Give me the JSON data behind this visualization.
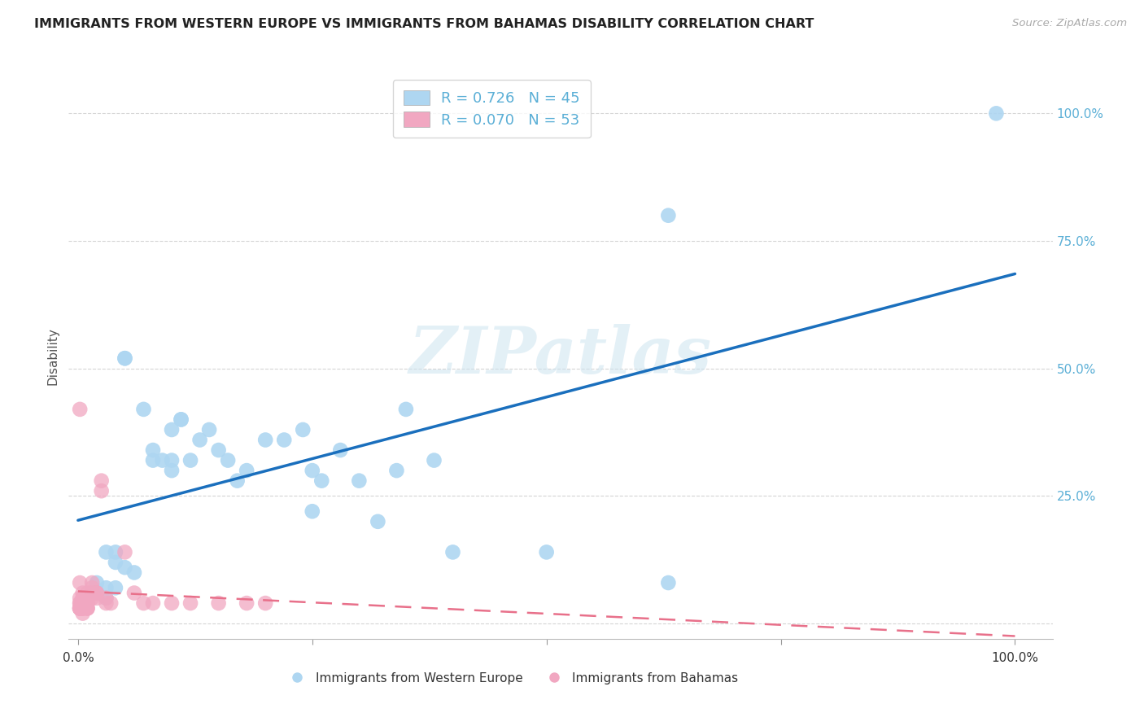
{
  "title": "IMMIGRANTS FROM WESTERN EUROPE VS IMMIGRANTS FROM BAHAMAS DISABILITY CORRELATION CHART",
  "source": "Source: ZipAtlas.com",
  "ylabel": "Disability",
  "watermark": "ZIPatlas",
  "legend1_r": "0.726",
  "legend1_n": "45",
  "legend2_r": "0.070",
  "legend2_n": "53",
  "series1_name": "Immigrants from Western Europe",
  "series2_name": "Immigrants from Bahamas",
  "series1_color": "#aed6f1",
  "series2_color": "#f1a7c1",
  "series1_line_color": "#1a6fbd",
  "series2_line_color": "#e8708a",
  "background_color": "#ffffff",
  "grid_color": "#d5d5d5",
  "blue_points_x": [
    0.98,
    0.05,
    0.05,
    0.07,
    0.08,
    0.08,
    0.09,
    0.1,
    0.1,
    0.1,
    0.11,
    0.11,
    0.12,
    0.13,
    0.14,
    0.15,
    0.16,
    0.17,
    0.18,
    0.2,
    0.22,
    0.24,
    0.25,
    0.25,
    0.26,
    0.28,
    0.3,
    0.32,
    0.34,
    0.38,
    0.03,
    0.04,
    0.04,
    0.05,
    0.06,
    0.02,
    0.02,
    0.03,
    0.03,
    0.04,
    0.35,
    0.4,
    0.5,
    0.63,
    0.63
  ],
  "blue_points_y": [
    1.0,
    0.52,
    0.52,
    0.42,
    0.34,
    0.32,
    0.32,
    0.3,
    0.32,
    0.38,
    0.4,
    0.4,
    0.32,
    0.36,
    0.38,
    0.34,
    0.32,
    0.28,
    0.3,
    0.36,
    0.36,
    0.38,
    0.22,
    0.3,
    0.28,
    0.34,
    0.28,
    0.2,
    0.3,
    0.32,
    0.14,
    0.14,
    0.12,
    0.11,
    0.1,
    0.08,
    0.06,
    0.07,
    0.05,
    0.07,
    0.42,
    0.14,
    0.14,
    0.08,
    0.8
  ],
  "pink_points_x": [
    0.005,
    0.005,
    0.005,
    0.005,
    0.005,
    0.005,
    0.005,
    0.005,
    0.005,
    0.005,
    0.01,
    0.01,
    0.01,
    0.01,
    0.01,
    0.01,
    0.01,
    0.01,
    0.01,
    0.01,
    0.01,
    0.015,
    0.015,
    0.015,
    0.015,
    0.02,
    0.02,
    0.02,
    0.025,
    0.025,
    0.03,
    0.03,
    0.035,
    0.002,
    0.002,
    0.002,
    0.002,
    0.002,
    0.002,
    0.002,
    0.002,
    0.05,
    0.06,
    0.07,
    0.08,
    0.1,
    0.12,
    0.15,
    0.18,
    0.2,
    0.002,
    0.002,
    0.002
  ],
  "pink_points_y": [
    0.06,
    0.05,
    0.05,
    0.04,
    0.04,
    0.03,
    0.03,
    0.03,
    0.03,
    0.02,
    0.06,
    0.05,
    0.05,
    0.05,
    0.04,
    0.04,
    0.04,
    0.04,
    0.03,
    0.03,
    0.03,
    0.08,
    0.07,
    0.06,
    0.05,
    0.06,
    0.06,
    0.05,
    0.28,
    0.26,
    0.05,
    0.04,
    0.04,
    0.04,
    0.04,
    0.03,
    0.03,
    0.03,
    0.03,
    0.03,
    0.03,
    0.14,
    0.06,
    0.04,
    0.04,
    0.04,
    0.04,
    0.04,
    0.04,
    0.04,
    0.42,
    0.08,
    0.05
  ]
}
